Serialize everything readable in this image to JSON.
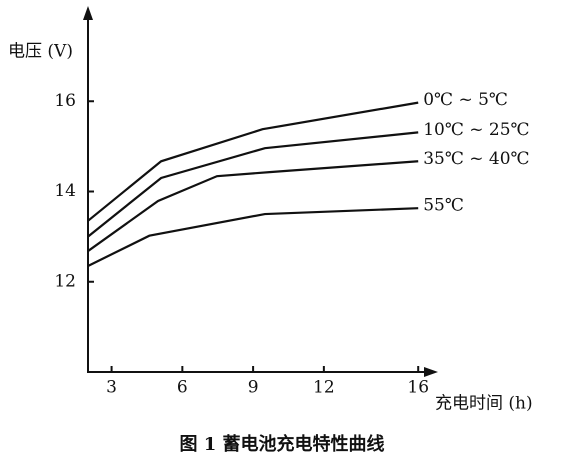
{
  "chart_data": {
    "type": "line",
    "caption": "图 1  蓄电池充电特性曲线",
    "y_label": "电压 (V)",
    "x_label": "充电时间 (h)",
    "xlim": [
      2,
      16.5
    ],
    "ylim": [
      10,
      18
    ],
    "xticks": [
      3,
      6,
      9,
      12,
      16
    ],
    "yticks": [
      12,
      14,
      16
    ],
    "series": [
      {
        "name": "0℃ ~ 5℃",
        "color": "#111111",
        "x": [
          2,
          5.1,
          9.4,
          16
        ],
        "values": [
          13.35,
          14.67,
          15.38,
          15.97
        ]
      },
      {
        "name": "10℃ ~ 25℃",
        "color": "#111111",
        "x": [
          2,
          5.1,
          9.5,
          16
        ],
        "values": [
          13.0,
          14.3,
          14.96,
          15.31
        ]
      },
      {
        "name": "35℃ ~ 40℃",
        "color": "#111111",
        "x": [
          2,
          4.97,
          7.47,
          9.7,
          16
        ],
        "values": [
          12.68,
          13.79,
          14.34,
          14.43,
          14.67
        ]
      },
      {
        "name": "55℃",
        "color": "#111111",
        "x": [
          2,
          4.6,
          9.5,
          16
        ],
        "values": [
          12.35,
          13.02,
          13.5,
          13.63
        ]
      }
    ]
  }
}
